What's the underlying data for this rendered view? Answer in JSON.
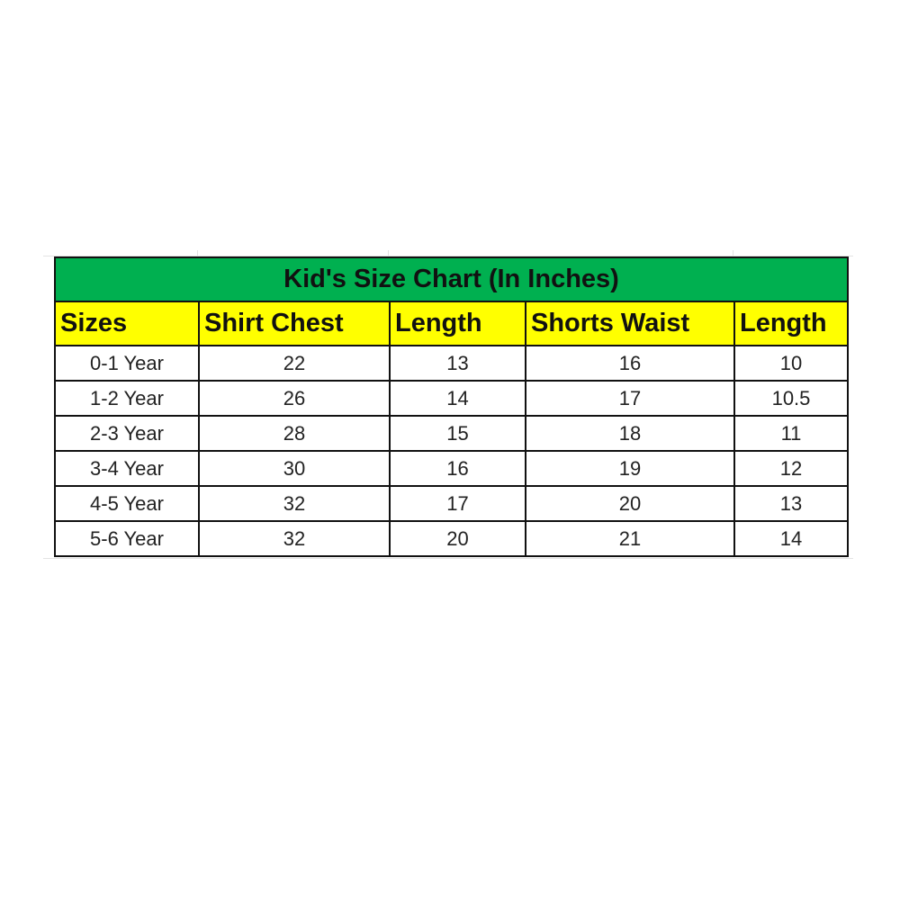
{
  "title": "Kid's Size Chart (In Inches)",
  "colors": {
    "title_bg": "#00b050",
    "header_bg": "#ffff00"
  },
  "headers": [
    "Sizes",
    "Shirt Chest",
    "Length",
    "Shorts Waist",
    "Length"
  ],
  "rows": [
    [
      "0-1 Year",
      "22",
      "13",
      "16",
      "10"
    ],
    [
      "1-2 Year",
      "26",
      "14",
      "17",
      "10.5"
    ],
    [
      "2-3 Year",
      "28",
      "15",
      "18",
      "11"
    ],
    [
      "3-4 Year",
      "30",
      "16",
      "19",
      "12"
    ],
    [
      "4-5 Year",
      "32",
      "17",
      "20",
      "13"
    ],
    [
      "5-6 Year",
      "32",
      "20",
      "21",
      "14"
    ]
  ]
}
